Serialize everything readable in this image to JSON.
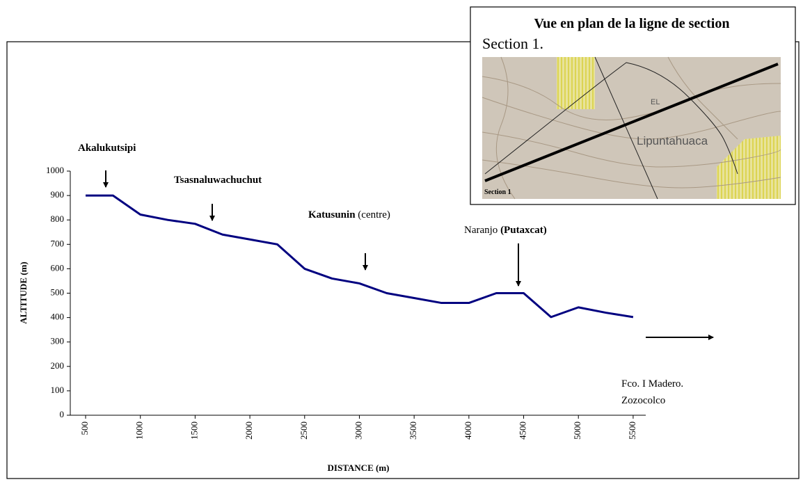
{
  "chart_data": {
    "type": "line",
    "x_label": "DISTANCE (m)",
    "y_label": "ALTITUDE (m)",
    "x": [
      500,
      750,
      1000,
      1250,
      1500,
      1750,
      2000,
      2250,
      2500,
      2750,
      3000,
      3250,
      3500,
      3750,
      4000,
      4250,
      4500,
      4750,
      5000,
      5250,
      5500
    ],
    "series": [
      {
        "name": "Section 1",
        "color": "#000080",
        "values": [
          900,
          900,
          822,
          800,
          784,
          740,
          720,
          700,
          600,
          560,
          540,
          500,
          480,
          460,
          460,
          500,
          500,
          402,
          442,
          420,
          402
        ]
      }
    ],
    "xlim": [
      360,
      5615
    ],
    "xticks": [
      500,
      1000,
      1500,
      2000,
      2500,
      3000,
      3500,
      4000,
      4500,
      5000,
      5500
    ],
    "ylim": [
      0,
      1000
    ],
    "yticks": [
      0,
      100,
      200,
      300,
      400,
      500,
      600,
      700,
      800,
      900,
      1000
    ],
    "annotations": [
      {
        "bold": "Akalukutsipi"
      },
      {
        "bold": "Tsasnaluwachuchut"
      },
      {
        "bold": "Katusunin",
        "normal": " (centre)"
      },
      {
        "normal": "Naranjo ",
        "bold": "(Putaxcat)"
      },
      {
        "lines": [
          "Fco. I Madero.",
          "Zozocolco"
        ]
      }
    ]
  },
  "inset": {
    "title": "Vue en plan de la ligne de section",
    "subtitle": "Section 1.",
    "map_labels": [
      "Lipuntahuaca",
      "EL",
      "Section 1"
    ]
  }
}
